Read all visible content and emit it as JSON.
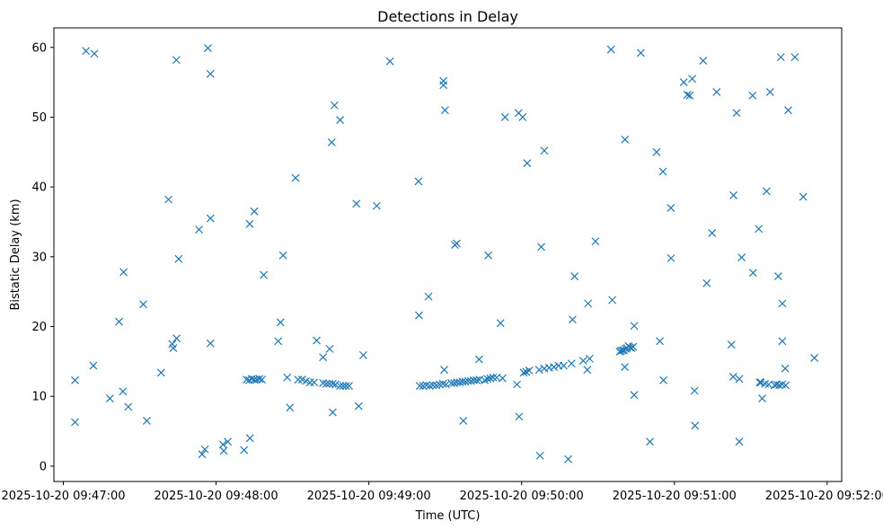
{
  "chart_data": {
    "type": "scatter",
    "title": "Detections in Delay",
    "xlabel": "Time (UTC)",
    "ylabel": "Bistatic Delay (km)",
    "marker": "x",
    "color": "#1f77b4",
    "grid": false,
    "x_unit": "seconds after 2025-10-20 09:47:00",
    "xlim": [
      -3.7,
      305.7
    ],
    "ylim": [
      -2.2,
      62.8
    ],
    "xticks": [
      {
        "value": 0,
        "label": "2025-10-20 09:47:00"
      },
      {
        "value": 60,
        "label": "2025-10-20 09:48:00"
      },
      {
        "value": 120,
        "label": "2025-10-20 09:49:00"
      },
      {
        "value": 180,
        "label": "2025-10-20 09:50:00"
      },
      {
        "value": 240,
        "label": "2025-10-20 09:51:00"
      },
      {
        "value": 300,
        "label": "2025-10-20 09:52:00"
      }
    ],
    "yticks": [
      {
        "value": 0,
        "label": "0"
      },
      {
        "value": 10,
        "label": "10"
      },
      {
        "value": 20,
        "label": "20"
      },
      {
        "value": 30,
        "label": "30"
      },
      {
        "value": 40,
        "label": "40"
      },
      {
        "value": 50,
        "label": "50"
      },
      {
        "value": 60,
        "label": "60"
      }
    ],
    "points": [
      [
        4.6,
        12.3
      ],
      [
        4.6,
        6.3
      ],
      [
        8.9,
        59.5
      ],
      [
        12.2,
        59.1
      ],
      [
        11.8,
        14.4
      ],
      [
        18.3,
        9.7
      ],
      [
        21.9,
        20.7
      ],
      [
        23.7,
        27.8
      ],
      [
        23.4,
        10.7
      ],
      [
        25.5,
        8.5
      ],
      [
        31.4,
        23.2
      ],
      [
        32.8,
        6.5
      ],
      [
        38.4,
        13.4
      ],
      [
        41.3,
        38.2
      ],
      [
        42.8,
        17.5
      ],
      [
        43.2,
        16.9
      ],
      [
        44.5,
        18.3
      ],
      [
        44.4,
        58.2
      ],
      [
        45.3,
        29.7
      ],
      [
        53.3,
        33.9
      ],
      [
        54.5,
        1.7
      ],
      [
        55.6,
        2.4
      ],
      [
        56.8,
        59.9
      ],
      [
        57.8,
        56.2
      ],
      [
        57.8,
        35.5
      ],
      [
        57.8,
        17.6
      ],
      [
        63.0,
        2.2
      ],
      [
        62.7,
        3.1
      ],
      [
        64.6,
        3.5
      ],
      [
        71.0,
        2.3
      ],
      [
        73.3,
        4.0
      ],
      [
        73.2,
        34.7
      ],
      [
        75.0,
        36.5
      ],
      [
        72.0,
        12.4
      ],
      [
        73.0,
        12.3
      ],
      [
        74.0,
        12.5
      ],
      [
        75.0,
        12.4
      ],
      [
        76.0,
        12.4
      ],
      [
        77.0,
        12.5
      ],
      [
        78.0,
        12.4
      ],
      [
        78.7,
        27.4
      ],
      [
        84.4,
        17.9
      ],
      [
        85.3,
        20.6
      ],
      [
        86.3,
        30.2
      ],
      [
        87.9,
        12.7
      ],
      [
        89.0,
        8.4
      ],
      [
        91.2,
        41.3
      ],
      [
        92.2,
        12.4
      ],
      [
        93.8,
        12.4
      ],
      [
        95.3,
        12.2
      ],
      [
        96.9,
        12.0
      ],
      [
        98.5,
        12.0
      ],
      [
        99.5,
        18.0
      ],
      [
        102.0,
        15.6
      ],
      [
        102.0,
        11.9
      ],
      [
        103.3,
        11.8
      ],
      [
        104.5,
        11.8
      ],
      [
        105.8,
        11.8
      ],
      [
        106.9,
        11.7
      ],
      [
        104.6,
        16.8
      ],
      [
        105.4,
        46.4
      ],
      [
        105.8,
        7.7
      ],
      [
        106.5,
        51.7
      ],
      [
        108.7,
        49.6
      ],
      [
        108.7,
        11.5
      ],
      [
        109.9,
        11.5
      ],
      [
        111.0,
        11.5
      ],
      [
        112.2,
        11.5
      ],
      [
        115.1,
        37.6
      ],
      [
        116.0,
        8.6
      ],
      [
        117.8,
        15.9
      ],
      [
        123.1,
        37.3
      ],
      [
        128.3,
        58.0
      ],
      [
        139.5,
        40.8
      ],
      [
        139.7,
        21.6
      ],
      [
        140.0,
        11.5
      ],
      [
        141.3,
        11.5
      ],
      [
        142.6,
        11.6
      ],
      [
        143.9,
        11.5
      ],
      [
        145.2,
        11.6
      ],
      [
        146.5,
        11.6
      ],
      [
        147.8,
        11.7
      ],
      [
        149.1,
        11.8
      ],
      [
        150.3,
        11.7
      ],
      [
        143.4,
        24.3
      ],
      [
        149.3,
        55.2
      ],
      [
        149.3,
        54.6
      ],
      [
        149.9,
        51.0
      ],
      [
        149.6,
        13.8
      ],
      [
        152.4,
        11.9
      ],
      [
        153.5,
        11.9
      ],
      [
        154.6,
        12.0
      ],
      [
        155.7,
        12.0
      ],
      [
        156.8,
        12.1
      ],
      [
        157.9,
        12.1
      ],
      [
        159.0,
        12.2
      ],
      [
        160.1,
        12.2
      ],
      [
        161.2,
        12.3
      ],
      [
        162.3,
        12.3
      ],
      [
        163.4,
        12.4
      ],
      [
        153.8,
        31.7
      ],
      [
        154.5,
        31.9
      ],
      [
        157.1,
        6.5
      ],
      [
        163.3,
        15.3
      ],
      [
        165.5,
        12.3
      ],
      [
        166.6,
        12.5
      ],
      [
        167.7,
        12.6
      ],
      [
        168.8,
        12.7
      ],
      [
        166.9,
        30.2
      ],
      [
        170.2,
        12.7
      ],
      [
        171.7,
        20.5
      ],
      [
        172.5,
        12.6
      ],
      [
        173.5,
        50.0
      ],
      [
        178.2,
        11.7
      ],
      [
        178.8,
        50.6
      ],
      [
        179.0,
        7.1
      ],
      [
        180.4,
        50.0
      ],
      [
        180.8,
        13.4
      ],
      [
        181.8,
        13.5
      ],
      [
        183.0,
        13.7
      ],
      [
        182.2,
        43.4
      ],
      [
        187.7,
        31.4
      ],
      [
        187.2,
        1.5
      ],
      [
        186.9,
        13.8
      ],
      [
        188.9,
        45.2
      ],
      [
        188.9,
        14.0
      ],
      [
        190.8,
        14.1
      ],
      [
        192.7,
        14.2
      ],
      [
        194.5,
        14.4
      ],
      [
        196.5,
        14.4
      ],
      [
        198.3,
        1.0
      ],
      [
        199.6,
        14.7
      ],
      [
        200.0,
        21.0
      ],
      [
        200.8,
        27.2
      ],
      [
        204.2,
        15.1
      ],
      [
        205.8,
        13.8
      ],
      [
        206.1,
        23.3
      ],
      [
        206.7,
        15.4
      ],
      [
        209.0,
        32.2
      ],
      [
        215.1,
        59.7
      ],
      [
        215.6,
        23.8
      ],
      [
        218.5,
        16.4
      ],
      [
        219.0,
        16.5
      ],
      [
        219.6,
        16.6
      ],
      [
        220.2,
        16.6
      ],
      [
        220.8,
        16.8
      ],
      [
        221.4,
        16.9
      ],
      [
        222.0,
        17.2
      ],
      [
        222.6,
        17.0
      ],
      [
        223.2,
        16.9
      ],
      [
        223.8,
        17.1
      ],
      [
        220.6,
        46.8
      ],
      [
        220.5,
        14.2
      ],
      [
        224.2,
        20.1
      ],
      [
        224.2,
        10.2
      ],
      [
        226.8,
        59.2
      ],
      [
        230.4,
        3.5
      ],
      [
        233.0,
        45.0
      ],
      [
        234.3,
        17.9
      ],
      [
        235.5,
        42.2
      ],
      [
        235.7,
        12.3
      ],
      [
        238.6,
        37.0
      ],
      [
        238.7,
        29.8
      ],
      [
        243.7,
        55.0
      ],
      [
        245.1,
        53.2
      ],
      [
        246.0,
        53.1
      ],
      [
        247.0,
        55.5
      ],
      [
        247.9,
        10.8
      ],
      [
        248.1,
        5.8
      ],
      [
        251.3,
        58.1
      ],
      [
        252.7,
        26.2
      ],
      [
        256.6,
        53.6
      ],
      [
        254.8,
        33.4
      ],
      [
        262.4,
        17.4
      ],
      [
        263.2,
        38.8
      ],
      [
        263.1,
        12.8
      ],
      [
        264.4,
        50.6
      ],
      [
        265.5,
        3.5
      ],
      [
        265.5,
        12.5
      ],
      [
        266.4,
        29.9
      ],
      [
        270.7,
        53.1
      ],
      [
        270.9,
        27.7
      ],
      [
        273.1,
        34.0
      ],
      [
        273.5,
        12.0
      ],
      [
        274.0,
        12.0
      ],
      [
        274.5,
        9.7
      ],
      [
        275.6,
        11.8
      ],
      [
        276.2,
        39.4
      ],
      [
        277.0,
        11.7
      ],
      [
        277.6,
        53.6
      ],
      [
        279.4,
        11.6
      ],
      [
        280.2,
        11.7
      ],
      [
        280.8,
        27.2
      ],
      [
        281.2,
        11.6
      ],
      [
        281.8,
        58.6
      ],
      [
        282.3,
        11.7
      ],
      [
        282.4,
        23.3
      ],
      [
        282.4,
        17.9
      ],
      [
        283.5,
        14.0
      ],
      [
        283.7,
        11.6
      ],
      [
        284.7,
        51.0
      ],
      [
        287.3,
        58.6
      ],
      [
        290.6,
        38.6
      ],
      [
        295.0,
        15.5
      ]
    ]
  }
}
